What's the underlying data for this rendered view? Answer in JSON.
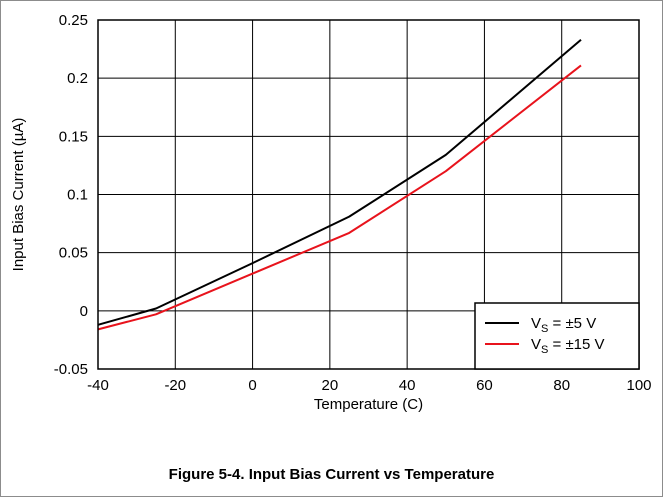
{
  "caption": "Figure 5-4. Input Bias Current vs Temperature",
  "chart_data": {
    "type": "line",
    "xlabel": "Temperature (C)",
    "ylabel": "Input Bias Current (µA)",
    "xlim": [
      -40,
      100
    ],
    "ylim": [
      -0.05,
      0.25
    ],
    "xticks": [
      -40,
      -20,
      0,
      20,
      40,
      60,
      80,
      100
    ],
    "yticks": [
      -0.05,
      0,
      0.05,
      0.1,
      0.15,
      0.2,
      0.25
    ],
    "xtick_labels": [
      "-40",
      "-20",
      "0",
      "20",
      "40",
      "60",
      "80",
      "100"
    ],
    "ytick_labels": [
      "-0.05",
      "0",
      "0.05",
      "0.1",
      "0.15",
      "0.2",
      "0.25"
    ],
    "grid": true,
    "legend_position": "bottom-right",
    "series": [
      {
        "name": "VS = ±5 V",
        "name_main": "V",
        "name_sub": "S",
        "name_rest": " = ±5 V",
        "color": "#000000",
        "x": [
          -40,
          -25,
          0,
          25,
          50,
          85
        ],
        "y": [
          -0.012,
          0.002,
          0.041,
          0.081,
          0.134,
          0.233
        ]
      },
      {
        "name": "VS = ±15 V",
        "name_main": "V",
        "name_sub": "S",
        "name_rest": " = ±15 V",
        "color": "#e8131c",
        "x": [
          -40,
          -25,
          0,
          25,
          50,
          85
        ],
        "y": [
          -0.016,
          -0.003,
          0.032,
          0.067,
          0.12,
          0.211
        ]
      }
    ]
  }
}
